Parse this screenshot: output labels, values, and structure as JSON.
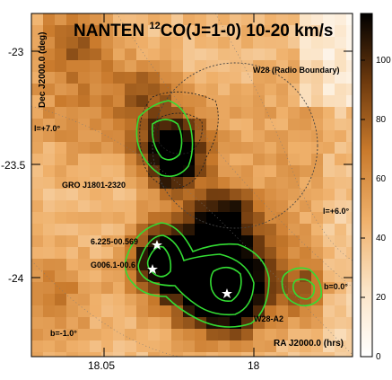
{
  "title": "NANTEN ¹²CO(J=1-0)  10-20 km/s",
  "title_main": "NANTEN ",
  "title_sup": "12",
  "title_rest": "CO(J=1-0)  10-20 km/s",
  "axes": {
    "ylabel": "Dec J2000.0 (deg)",
    "xlabel": "RA J2000.0 (hrs)",
    "yticks": [
      "-23",
      "-23.5",
      "-24"
    ],
    "xticks": [
      "18.05",
      "18"
    ]
  },
  "colorbar": {
    "ticks": [
      "0",
      "20",
      "40",
      "60",
      "80",
      "100"
    ],
    "colormap": "black-orange-white"
  },
  "labels": {
    "w28_boundary": "W28 (Radio Boundary)",
    "gro": "GRO J1801-2320",
    "src1": "6.225-00.569",
    "src2": "G006.1-00.6",
    "w28a2": "W28-A2",
    "l7": "l=+7.0°",
    "l6": "l=+6.0°",
    "b0": "b=0.0°",
    "bm1": "b=-1.0°"
  },
  "colors": {
    "contour": "#33dd33",
    "star": "#ffffff"
  }
}
